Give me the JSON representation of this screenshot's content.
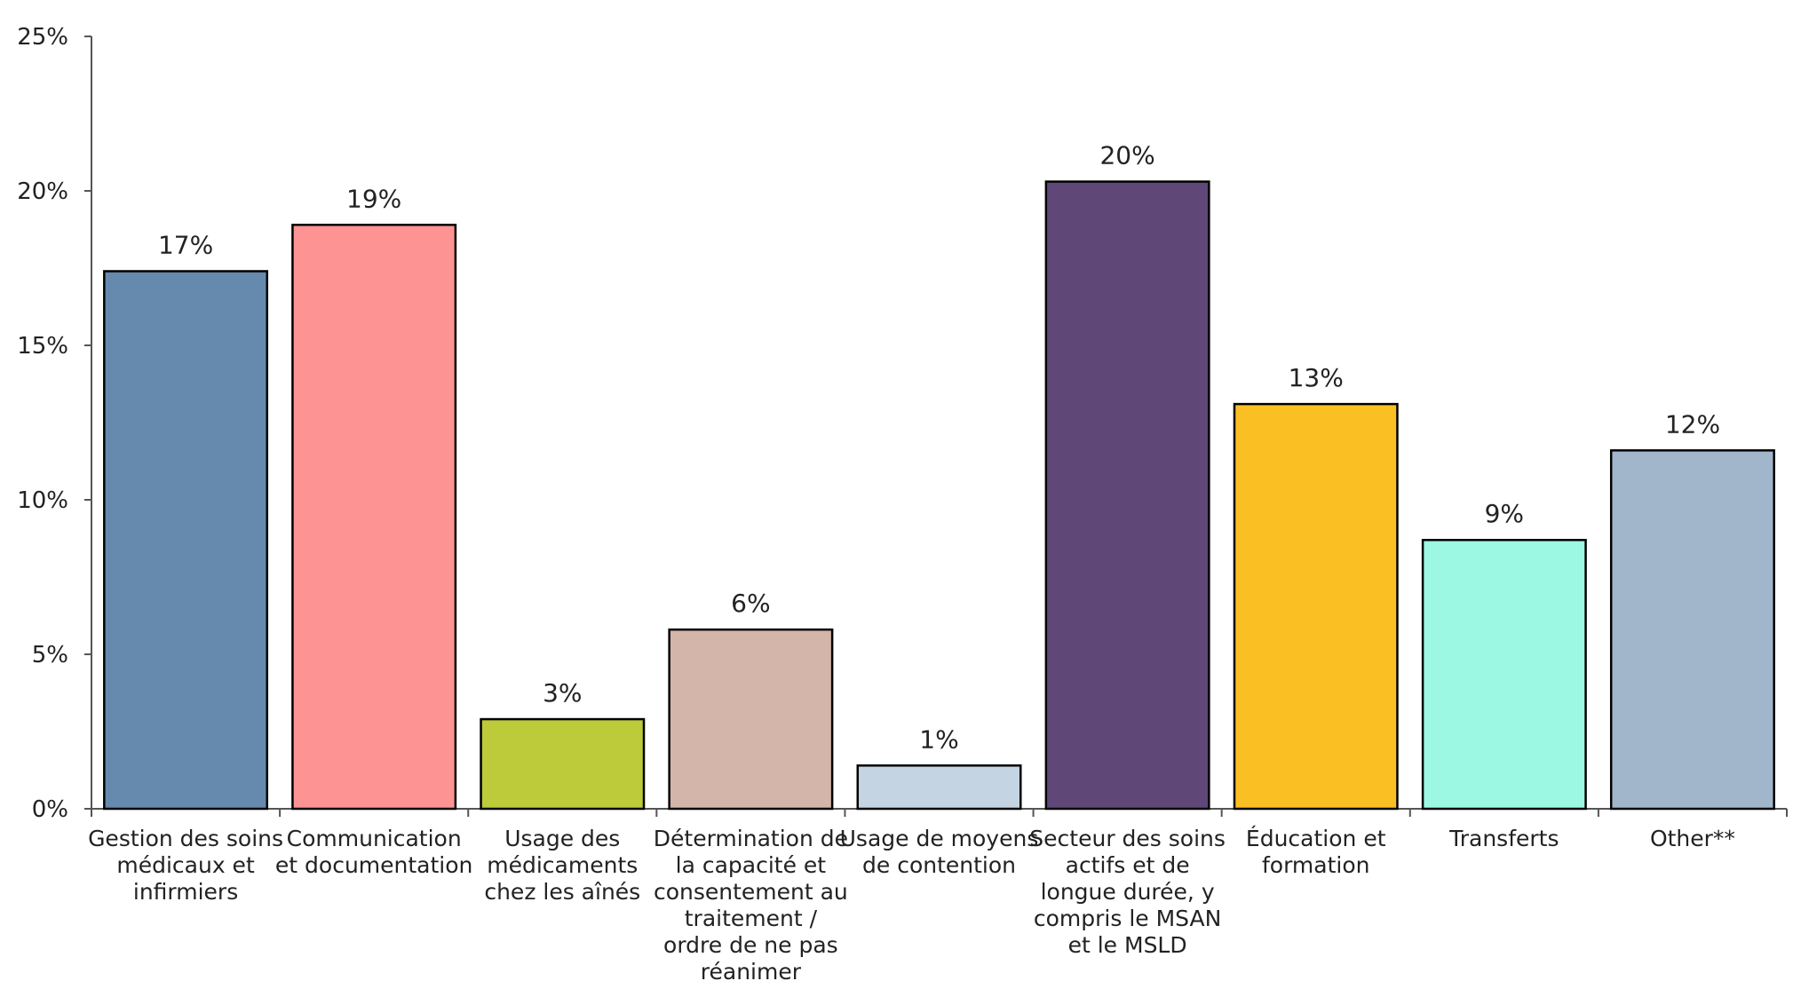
{
  "chart_data": {
    "type": "bar",
    "title": "",
    "xlabel": "",
    "ylabel": "",
    "ylim": [
      0,
      25
    ],
    "y_ticks": [
      "0%",
      "5%",
      "10%",
      "15%",
      "20%",
      "25%"
    ],
    "grid": false,
    "legend": "none",
    "categories": [
      [
        "Gestion des soins",
        "médicaux et",
        "infirmiers"
      ],
      [
        "Communication",
        "et documentation"
      ],
      [
        "Usage des",
        "médicaments",
        "chez les aînés"
      ],
      [
        "Détermination de",
        "la capacité et",
        "consentement au",
        "traitement /",
        "ordre de ne pas",
        "réanimer"
      ],
      [
        "Usage de moyens",
        "de contention"
      ],
      [
        "Secteur des soins",
        "actifs et de",
        "longue durée, y",
        "compris le MSAN",
        "et le MSLD"
      ],
      [
        "Éducation et",
        "formation"
      ],
      [
        "Transferts"
      ],
      [
        "Other**"
      ]
    ],
    "values": [
      17.4,
      18.9,
      2.9,
      5.8,
      1.4,
      20.3,
      13.1,
      8.7,
      11.6
    ],
    "data_labels": [
      "17%",
      "19%",
      "3%",
      "6%",
      "1%",
      "20%",
      "13%",
      "9%",
      "12%"
    ],
    "colors": [
      "#6689ae",
      "#fe9393",
      "#bdcb3b",
      "#d3b5a9",
      "#c5d4e2",
      "#5f4778",
      "#f9bf23",
      "#9df8e3",
      "#a2b6cb"
    ]
  }
}
